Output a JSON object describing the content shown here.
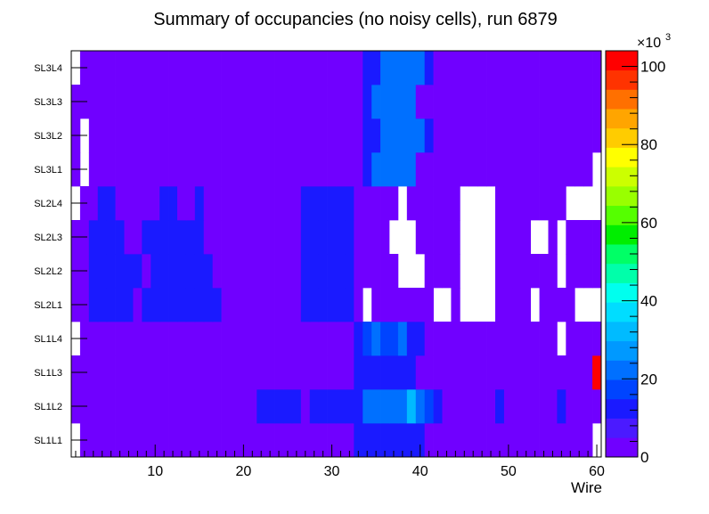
{
  "chart_data": {
    "type": "heatmap",
    "title": "Summary of occupancies (no noisy cells), run 6879",
    "xlabel": "Wire",
    "ylabel": "",
    "xlim": [
      0.5,
      60.5
    ],
    "x_ticks": [
      "10",
      "20",
      "30",
      "40",
      "50",
      "60"
    ],
    "rows": [
      "SL1L1",
      "SL1L2",
      "SL1L3",
      "SL1L4",
      "SL2L1",
      "SL2L2",
      "SL2L3",
      "SL2L4",
      "SL3L1",
      "SL3L2",
      "SL3L3",
      "SL3L4"
    ],
    "colorbar": {
      "min": 0,
      "max": 104000,
      "exponent_label": "×10",
      "exponent_power": "3",
      "tick_labels": [
        "0",
        "20",
        "40",
        "60",
        "80",
        "100"
      ],
      "palette": [
        "#7000ff",
        "#4b1aff",
        "#1a1aff",
        "#0044ff",
        "#0070ff",
        "#0099ff",
        "#00bbff",
        "#00ddff",
        "#00ffee",
        "#00ffaa",
        "#00ff66",
        "#00ee00",
        "#55ff00",
        "#99ff00",
        "#ccff00",
        "#ffff00",
        "#ffcc00",
        "#ffa500",
        "#ff7000",
        "#ff3300",
        "#ff0000"
      ]
    },
    "values_units": "occupancy (counts)",
    "values": [
      [
        0,
        4000,
        4000,
        4000,
        4000,
        4000,
        4000,
        4000,
        4000,
        4000,
        4000,
        4000,
        4000,
        4000,
        4000,
        4000,
        4000,
        4000,
        4000,
        4000,
        4000,
        4000,
        4000,
        4000,
        4000,
        4000,
        4000,
        4000,
        4000,
        4000,
        4000,
        4000,
        12000,
        14000,
        14000,
        14000,
        14000,
        12000,
        14000,
        12000,
        4000,
        4000,
        4000,
        4000,
        4000,
        4000,
        4000,
        4000,
        4000,
        4000,
        4000,
        4000,
        4000,
        4000,
        4000,
        4000,
        4000,
        4000,
        4000,
        0
      ],
      [
        4000,
        4000,
        4000,
        4000,
        4000,
        4000,
        4000,
        4000,
        4000,
        4000,
        4000,
        4000,
        4000,
        4000,
        4000,
        4000,
        4000,
        4000,
        4000,
        4000,
        4000,
        10000,
        10000,
        10000,
        10000,
        10000,
        4000,
        10000,
        10000,
        10000,
        10000,
        10000,
        10000,
        20000,
        20000,
        20000,
        20000,
        24000,
        34000,
        20000,
        16000,
        12000,
        4000,
        4000,
        4000,
        4000,
        4000,
        4000,
        10000,
        4000,
        4000,
        4000,
        4000,
        4000,
        4000,
        10000,
        4000,
        4000,
        4000,
        4000
      ],
      [
        4000,
        4000,
        4000,
        4000,
        4000,
        4000,
        4000,
        4000,
        4000,
        4000,
        4000,
        4000,
        4000,
        4000,
        4000,
        4000,
        4000,
        4000,
        4000,
        4000,
        4000,
        4000,
        4000,
        4000,
        4000,
        4000,
        4000,
        4000,
        4000,
        4000,
        4000,
        4000,
        10000,
        14000,
        14000,
        14000,
        14000,
        14000,
        14000,
        4000,
        4000,
        4000,
        4000,
        4000,
        4000,
        4000,
        4000,
        4000,
        4000,
        4000,
        4000,
        4000,
        4000,
        4000,
        4000,
        4000,
        4000,
        4000,
        4000,
        102000
      ],
      [
        0,
        4000,
        4000,
        4000,
        4000,
        4000,
        4000,
        4000,
        4000,
        4000,
        4000,
        4000,
        4000,
        4000,
        4000,
        4000,
        4000,
        4000,
        4000,
        4000,
        4000,
        4000,
        4000,
        4000,
        4000,
        4000,
        4000,
        4000,
        4000,
        4000,
        4000,
        4000,
        12000,
        16000,
        20000,
        16000,
        16000,
        20000,
        12000,
        10000,
        4000,
        4000,
        4000,
        4000,
        4000,
        4000,
        4000,
        4000,
        4000,
        4000,
        4000,
        4000,
        4000,
        4000,
        4000,
        0,
        4000,
        4000,
        4000,
        4000
      ],
      [
        4000,
        4000,
        10000,
        10000,
        10000,
        10000,
        10000,
        4000,
        10000,
        10000,
        10000,
        10000,
        10000,
        10000,
        10000,
        10000,
        10000,
        4000,
        4000,
        4000,
        4000,
        4000,
        4000,
        4000,
        4000,
        4000,
        14000,
        14000,
        14000,
        14000,
        14000,
        14000,
        4000,
        0,
        4000,
        4000,
        4000,
        4000,
        4000,
        4000,
        4000,
        0,
        0,
        4000,
        0,
        0,
        0,
        0,
        4000,
        4000,
        4000,
        4000,
        0,
        4000,
        4000,
        4000,
        4000,
        0,
        0,
        0
      ],
      [
        4000,
        4000,
        10000,
        10000,
        10000,
        10000,
        10000,
        10000,
        4000,
        10000,
        10000,
        10000,
        10000,
        10000,
        10000,
        10000,
        4000,
        4000,
        4000,
        4000,
        4000,
        4000,
        4000,
        4000,
        4000,
        4000,
        14000,
        14000,
        14000,
        14000,
        14000,
        14000,
        4000,
        4000,
        4000,
        4000,
        4000,
        0,
        0,
        0,
        4000,
        4000,
        4000,
        4000,
        0,
        0,
        0,
        0,
        4000,
        4000,
        4000,
        4000,
        4000,
        4000,
        4000,
        0,
        4000,
        4000,
        4000,
        4000
      ],
      [
        4000,
        4000,
        10000,
        10000,
        10000,
        10000,
        4000,
        4000,
        10000,
        10000,
        10000,
        10000,
        10000,
        10000,
        10000,
        4000,
        4000,
        4000,
        4000,
        4000,
        4000,
        4000,
        4000,
        4000,
        4000,
        4000,
        14000,
        14000,
        14000,
        14000,
        14000,
        14000,
        4000,
        4000,
        4000,
        4000,
        0,
        0,
        0,
        4000,
        4000,
        4000,
        4000,
        4000,
        0,
        0,
        0,
        0,
        4000,
        4000,
        4000,
        4000,
        0,
        0,
        4000,
        0,
        4000,
        4000,
        4000,
        4000
      ],
      [
        0,
        4000,
        4000,
        10000,
        10000,
        4000,
        4000,
        4000,
        4000,
        4000,
        10000,
        10000,
        4000,
        4000,
        10000,
        4000,
        4000,
        4000,
        4000,
        4000,
        4000,
        4000,
        4000,
        4000,
        4000,
        4000,
        14000,
        14000,
        14000,
        14000,
        14000,
        14000,
        4000,
        4000,
        4000,
        4000,
        4000,
        0,
        4000,
        4000,
        4000,
        4000,
        4000,
        4000,
        0,
        0,
        0,
        0,
        4000,
        4000,
        4000,
        4000,
        4000,
        4000,
        4000,
        4000,
        0,
        0,
        0,
        0
      ],
      [
        4000,
        0,
        4000,
        4000,
        4000,
        4000,
        4000,
        4000,
        4000,
        4000,
        4000,
        4000,
        4000,
        4000,
        4000,
        4000,
        4000,
        4000,
        4000,
        4000,
        4000,
        4000,
        4000,
        4000,
        4000,
        4000,
        4000,
        4000,
        4000,
        4000,
        4000,
        4000,
        4000,
        12000,
        20000,
        20000,
        20000,
        20000,
        20000,
        4000,
        4000,
        4000,
        4000,
        4000,
        4000,
        4000,
        4000,
        4000,
        4000,
        4000,
        4000,
        4000,
        4000,
        4000,
        4000,
        4000,
        4000,
        4000,
        4000,
        0
      ],
      [
        4000,
        0,
        4000,
        4000,
        4000,
        4000,
        4000,
        4000,
        4000,
        4000,
        4000,
        4000,
        4000,
        4000,
        4000,
        4000,
        4000,
        4000,
        4000,
        4000,
        4000,
        4000,
        4000,
        4000,
        4000,
        4000,
        4000,
        4000,
        4000,
        4000,
        4000,
        4000,
        4000,
        12000,
        14000,
        20000,
        20000,
        20000,
        20000,
        20000,
        12000,
        4000,
        4000,
        4000,
        4000,
        4000,
        4000,
        4000,
        4000,
        4000,
        4000,
        4000,
        4000,
        4000,
        4000,
        4000,
        4000,
        4000,
        4000,
        4000
      ],
      [
        4000,
        4000,
        4000,
        4000,
        4000,
        4000,
        4000,
        4000,
        4000,
        4000,
        4000,
        4000,
        4000,
        4000,
        4000,
        4000,
        4000,
        4000,
        4000,
        4000,
        4000,
        4000,
        4000,
        4000,
        4000,
        4000,
        4000,
        4000,
        4000,
        4000,
        4000,
        4000,
        4000,
        12000,
        20000,
        20000,
        20000,
        20000,
        20000,
        4000,
        4000,
        4000,
        4000,
        4000,
        4000,
        4000,
        4000,
        4000,
        4000,
        4000,
        4000,
        4000,
        4000,
        4000,
        4000,
        4000,
        4000,
        4000,
        4000,
        4000
      ],
      [
        0,
        4000,
        4000,
        4000,
        4000,
        4000,
        4000,
        4000,
        4000,
        4000,
        4000,
        4000,
        4000,
        4000,
        4000,
        4000,
        4000,
        4000,
        4000,
        4000,
        4000,
        4000,
        4000,
        4000,
        4000,
        4000,
        4000,
        4000,
        4000,
        4000,
        4000,
        4000,
        4000,
        12000,
        14000,
        20000,
        20000,
        20000,
        20000,
        20000,
        12000,
        4000,
        4000,
        4000,
        4000,
        4000,
        4000,
        4000,
        4000,
        4000,
        4000,
        4000,
        4000,
        4000,
        4000,
        4000,
        4000,
        4000,
        4000,
        4000
      ]
    ]
  }
}
